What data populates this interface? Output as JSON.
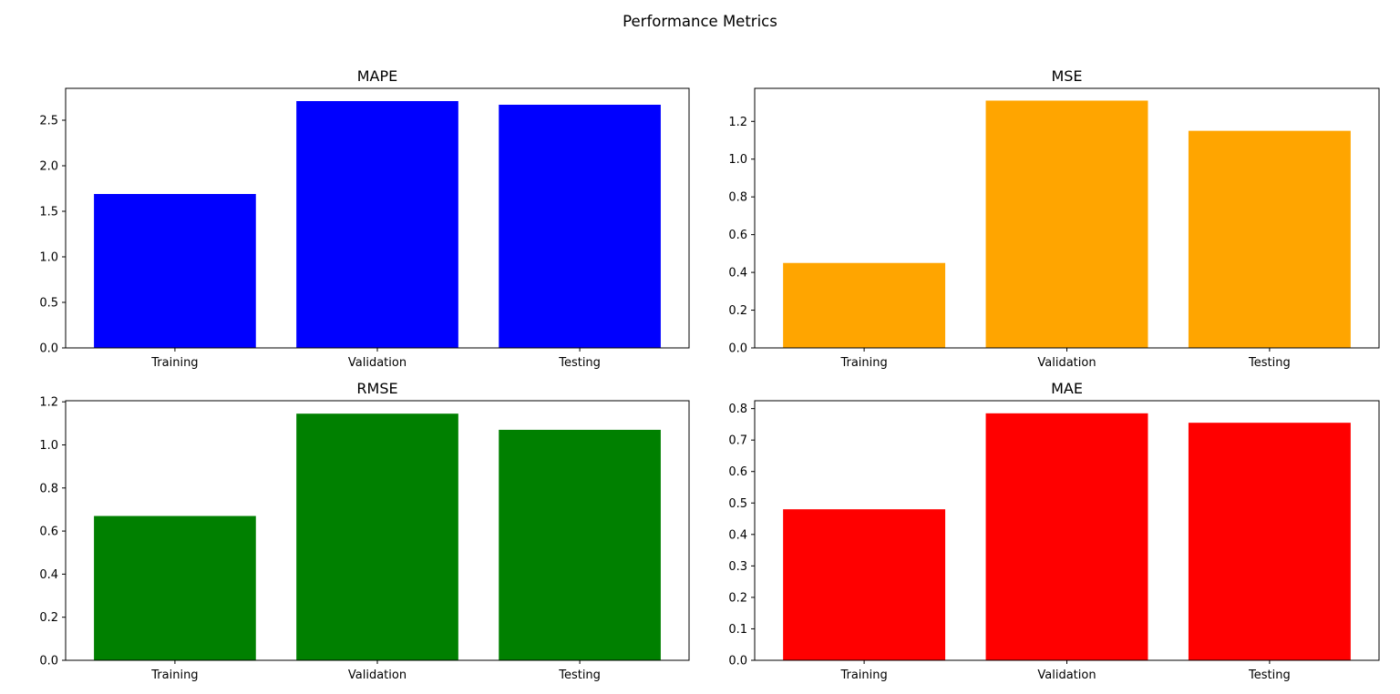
{
  "figure": {
    "suptitle": "Performance Metrics"
  },
  "chart_data": [
    {
      "type": "bar",
      "title": "MAPE",
      "categories": [
        "Training",
        "Validation",
        "Testing"
      ],
      "values": [
        1.69,
        2.71,
        2.67
      ],
      "color": "#0000ff",
      "ylim": [
        0,
        2.85
      ],
      "yticks": [
        0.0,
        0.5,
        1.0,
        1.5,
        2.0,
        2.5
      ],
      "ytick_labels": [
        "0.0",
        "0.5",
        "1.0",
        "1.5",
        "2.0",
        "2.5"
      ],
      "grid": false
    },
    {
      "type": "bar",
      "title": "MSE",
      "categories": [
        "Training",
        "Validation",
        "Testing"
      ],
      "values": [
        0.45,
        1.31,
        1.15
      ],
      "color": "#ffa500",
      "ylim": [
        0,
        1.375
      ],
      "yticks": [
        0.0,
        0.2,
        0.4,
        0.6,
        0.8,
        1.0,
        1.2
      ],
      "ytick_labels": [
        "0.0",
        "0.2",
        "0.4",
        "0.6",
        "0.8",
        "1.0",
        "1.2"
      ],
      "grid": false
    },
    {
      "type": "bar",
      "title": "RMSE",
      "categories": [
        "Training",
        "Validation",
        "Testing"
      ],
      "values": [
        0.67,
        1.145,
        1.07
      ],
      "color": "#008000",
      "ylim": [
        0,
        1.205
      ],
      "yticks": [
        0.0,
        0.2,
        0.4,
        0.6,
        0.8,
        1.0,
        1.2
      ],
      "ytick_labels": [
        "0.0",
        "0.2",
        "0.4",
        "0.6",
        "0.8",
        "1.0",
        "1.2"
      ],
      "grid": false
    },
    {
      "type": "bar",
      "title": "MAE",
      "categories": [
        "Training",
        "Validation",
        "Testing"
      ],
      "values": [
        0.48,
        0.785,
        0.755
      ],
      "color": "#ff0000",
      "ylim": [
        0,
        0.825
      ],
      "yticks": [
        0.0,
        0.1,
        0.2,
        0.3,
        0.4,
        0.5,
        0.6,
        0.7,
        0.8
      ],
      "ytick_labels": [
        "0.0",
        "0.1",
        "0.2",
        "0.3",
        "0.4",
        "0.5",
        "0.6",
        "0.7",
        "0.8"
      ],
      "grid": false
    }
  ]
}
